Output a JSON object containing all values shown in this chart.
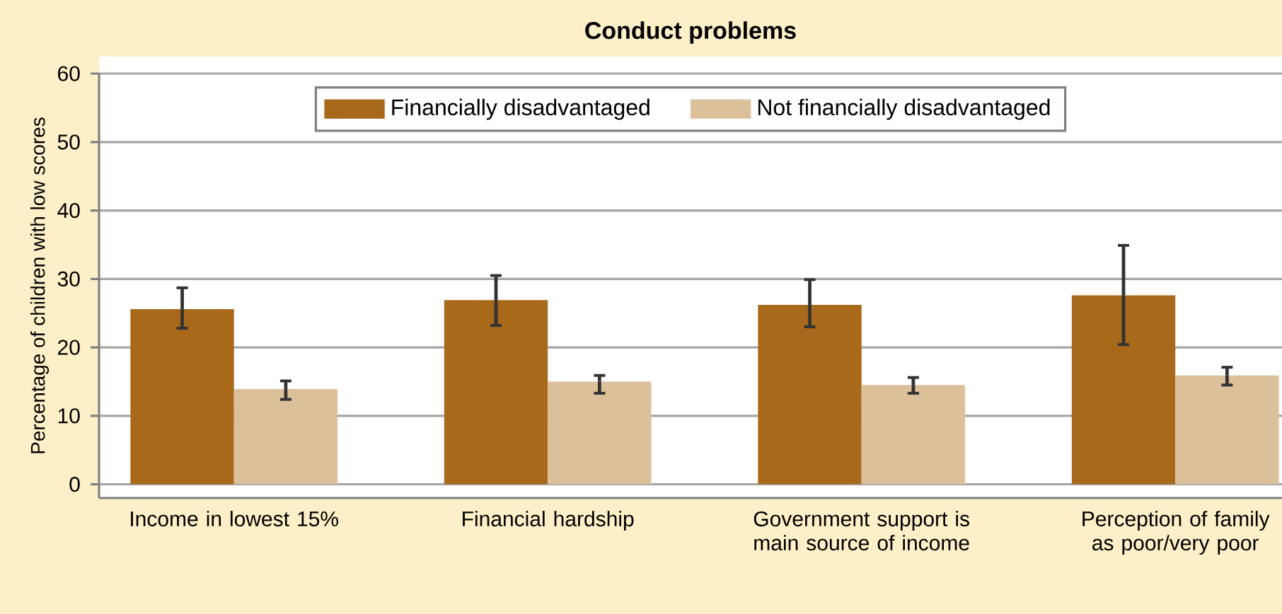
{
  "chart_data": {
    "type": "bar",
    "title": "Conduct problems",
    "ylabel": "Percentage of children with low scores",
    "categories": [
      "Income in lowest 15%",
      "Financial hardship",
      "Government support is main source of income",
      "Perception of family as poor/very poor"
    ],
    "series": [
      {
        "name": "Financially disadvantaged",
        "color": "#a8691a",
        "values": [
          25.6,
          26.9,
          26.2,
          27.6
        ],
        "errors": [
          [
            22.8,
            28.7
          ],
          [
            23.2,
            30.5
          ],
          [
            23.0,
            29.9
          ],
          [
            20.4,
            34.9
          ]
        ]
      },
      {
        "name": "Not financially disadvantaged",
        "color": "#dcc09a",
        "values": [
          13.9,
          15.0,
          14.5,
          15.9
        ],
        "errors": [
          [
            12.4,
            15.1
          ],
          [
            13.3,
            15.9
          ],
          [
            13.3,
            15.6
          ],
          [
            14.5,
            17.1
          ]
        ]
      }
    ],
    "ylim": [
      -2,
      60
    ],
    "yticks": [
      0,
      10,
      20,
      30,
      40,
      50,
      60
    ],
    "grid": "y",
    "legend": "top"
  }
}
